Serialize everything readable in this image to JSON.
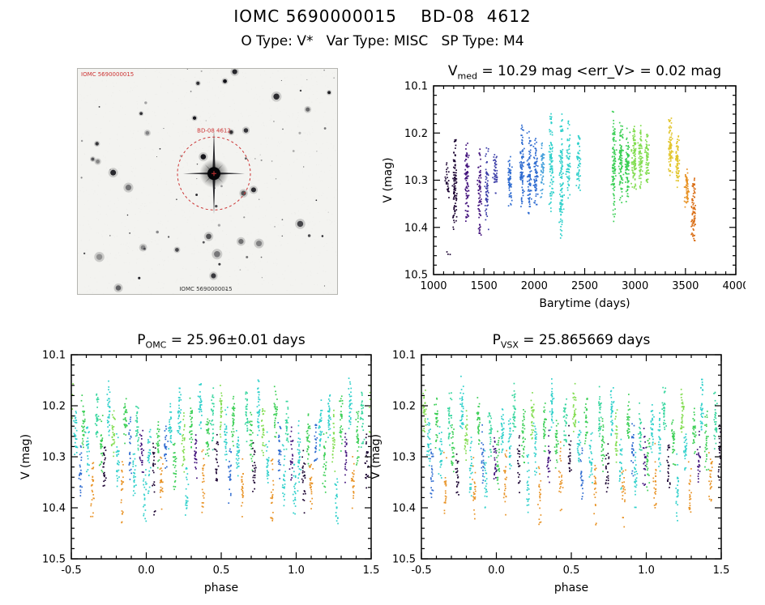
{
  "header": {
    "title": "IOMC 5690000015    BD-08  4612",
    "subtitle": "O Type: V*   Var Type: MISC   SP Type: M4"
  },
  "sky_image": {
    "top_left_label": "IOMC 5690000015",
    "circle_label": "BD-08 4612",
    "bottom_label": "IOMC 5690000015",
    "circle_color": "#cc3333"
  },
  "palette": [
    "#190030",
    "#42127c",
    "#3c3fa8",
    "#2e6bd0",
    "#4aa2dc",
    "#2fd0cb",
    "#36d69e",
    "#3bcf55",
    "#82dd50",
    "#c4de33",
    "#e2c52c",
    "#e89326",
    "#d96c12"
  ],
  "chart_data": [
    {
      "id": "lightcurve",
      "type": "scatter",
      "title_prefix": "V",
      "title_sub": "med",
      "title_rest": " = 10.29 mag <err_V> = 0.02 mag",
      "xlabel": "Barytime (days)",
      "ylabel": "V (mag)",
      "xlim": [
        1000,
        4000
      ],
      "ylim": [
        10.1,
        10.5
      ],
      "y_axis": "inverted (brighter magnitudes up)",
      "grid": false,
      "xticks": [
        1000,
        1500,
        2000,
        2500,
        3000,
        3500,
        4000
      ],
      "xtick_labels": [
        "1000",
        "1500",
        "2000",
        "2500",
        "3000",
        "3500",
        "4000"
      ],
      "yticks": [
        10.1,
        10.2,
        10.3,
        10.4,
        10.5
      ],
      "ytick_labels": [
        "10.1",
        "10.2",
        "10.3",
        "10.4",
        "10.5"
      ],
      "x_minor_step": 100,
      "y_minor_step": 0.02,
      "x_jitter": 30,
      "clusters": [
        [
          1135,
          10.25,
          10.34,
          0,
          25
        ],
        [
          1150,
          10.45,
          10.47,
          0,
          3
        ],
        [
          1210,
          10.19,
          10.42,
          0,
          90
        ],
        [
          1330,
          10.2,
          10.4,
          1,
          80
        ],
        [
          1460,
          10.22,
          10.43,
          1,
          70
        ],
        [
          1530,
          10.22,
          10.42,
          2,
          60
        ],
        [
          1615,
          10.24,
          10.34,
          2,
          45
        ],
        [
          1755,
          10.24,
          10.36,
          3,
          60
        ],
        [
          1880,
          10.17,
          10.38,
          3,
          90
        ],
        [
          1950,
          10.19,
          10.4,
          3,
          80
        ],
        [
          2015,
          10.2,
          10.38,
          3,
          70
        ],
        [
          2080,
          10.2,
          10.35,
          4,
          60
        ],
        [
          2170,
          10.14,
          10.38,
          5,
          90
        ],
        [
          2270,
          10.15,
          10.45,
          5,
          110
        ],
        [
          2340,
          10.17,
          10.35,
          5,
          60
        ],
        [
          2440,
          10.19,
          10.33,
          5,
          50
        ],
        [
          2790,
          10.14,
          10.4,
          7,
          110
        ],
        [
          2860,
          10.17,
          10.36,
          7,
          90
        ],
        [
          2925,
          10.18,
          10.35,
          7,
          80
        ],
        [
          2990,
          10.16,
          10.33,
          8,
          100
        ],
        [
          3055,
          10.18,
          10.33,
          8,
          80
        ],
        [
          3120,
          10.19,
          10.32,
          8,
          60
        ],
        [
          3350,
          10.16,
          10.3,
          10,
          80
        ],
        [
          3420,
          10.2,
          10.32,
          10,
          70
        ],
        [
          3515,
          10.27,
          10.36,
          11,
          60
        ],
        [
          3580,
          10.28,
          10.44,
          12,
          80
        ]
      ]
    },
    {
      "id": "phase_omc",
      "type": "scatter",
      "title_prefix": "P",
      "title_sub": "OMC",
      "title_rest": " = 25.96±0.01 days",
      "xlabel": "phase",
      "ylabel": "V (mag)",
      "xlim": [
        -0.5,
        1.5
      ],
      "ylim": [
        10.1,
        10.5
      ],
      "y_axis": "inverted (brighter magnitudes up)",
      "grid": false,
      "xticks": [
        -0.5,
        0.0,
        0.5,
        1.0,
        1.5
      ],
      "xtick_labels": [
        "-0.5",
        "0.0",
        "0.5",
        "1.0",
        "1.5"
      ],
      "yticks": [
        10.1,
        10.2,
        10.3,
        10.4,
        10.5
      ],
      "ytick_labels": [
        "10.1",
        "10.2",
        "10.3",
        "10.4",
        "10.5"
      ],
      "x_minor_step": 0.1,
      "y_minor_step": 0.02,
      "x_jitter": 0.016,
      "folded": true,
      "streaks": [
        [
          0.02,
          10.22,
          10.38,
          5,
          30
        ],
        [
          0.05,
          10.26,
          10.42,
          0,
          24
        ],
        [
          0.08,
          10.2,
          10.34,
          7,
          30
        ],
        [
          0.1,
          10.29,
          10.41,
          11,
          26
        ],
        [
          0.13,
          10.22,
          10.33,
          3,
          24
        ],
        [
          0.16,
          10.18,
          10.3,
          5,
          30
        ],
        [
          0.19,
          10.25,
          10.38,
          7,
          28
        ],
        [
          0.22,
          10.15,
          10.28,
          5,
          32
        ],
        [
          0.25,
          10.2,
          10.34,
          8,
          28
        ],
        [
          0.27,
          10.31,
          10.45,
          5,
          22
        ],
        [
          0.3,
          10.17,
          10.3,
          7,
          30
        ],
        [
          0.33,
          10.24,
          10.36,
          1,
          24
        ],
        [
          0.36,
          10.14,
          10.26,
          5,
          30
        ],
        [
          0.38,
          10.28,
          10.42,
          11,
          24
        ],
        [
          0.41,
          10.2,
          10.33,
          7,
          30
        ],
        [
          0.44,
          10.16,
          10.29,
          6,
          28
        ],
        [
          0.47,
          10.24,
          10.37,
          0,
          22
        ],
        [
          0.5,
          10.14,
          10.27,
          8,
          30
        ],
        [
          0.53,
          10.2,
          10.32,
          5,
          28
        ],
        [
          0.56,
          10.26,
          10.4,
          3,
          24
        ],
        [
          0.58,
          10.17,
          10.29,
          7,
          30
        ],
        [
          0.61,
          10.22,
          10.35,
          5,
          28
        ],
        [
          0.64,
          10.28,
          10.44,
          11,
          24
        ],
        [
          0.67,
          10.16,
          10.28,
          6,
          30
        ],
        [
          0.7,
          10.21,
          10.34,
          7,
          28
        ],
        [
          0.72,
          10.26,
          10.38,
          0,
          22
        ],
        [
          0.75,
          10.14,
          10.27,
          5,
          32
        ],
        [
          0.78,
          10.19,
          10.31,
          8,
          28
        ],
        [
          0.81,
          10.24,
          10.37,
          5,
          26
        ],
        [
          0.84,
          10.29,
          10.45,
          11,
          22
        ],
        [
          0.86,
          10.16,
          10.28,
          7,
          30
        ],
        [
          0.89,
          10.22,
          10.35,
          3,
          26
        ],
        [
          0.92,
          10.27,
          10.41,
          5,
          24
        ],
        [
          0.94,
          10.18,
          10.3,
          6,
          28
        ],
        [
          0.97,
          10.23,
          10.36,
          1,
          24
        ],
        [
          0.99,
          10.3,
          10.44,
          5,
          22
        ]
      ]
    },
    {
      "id": "phase_vsx",
      "type": "scatter",
      "title_prefix": "P",
      "title_sub": "VSX",
      "title_rest": " = 25.865669 days",
      "xlabel": "phase",
      "ylabel": "V (mag)",
      "xlim": [
        -0.5,
        1.5
      ],
      "ylim": [
        10.1,
        10.5
      ],
      "y_axis": "inverted (brighter magnitudes up)",
      "grid": false,
      "xticks": [
        -0.5,
        0.0,
        0.5,
        1.0,
        1.5
      ],
      "xtick_labels": [
        "-0.5",
        "0.0",
        "0.5",
        "1.0",
        "1.5"
      ],
      "yticks": [
        10.1,
        10.2,
        10.3,
        10.4,
        10.5
      ],
      "ytick_labels": [
        "10.1",
        "10.2",
        "10.3",
        "10.4",
        "10.5"
      ],
      "x_minor_step": 0.1,
      "y_minor_step": 0.02,
      "x_jitter": 0.016,
      "folded": true,
      "streaks": [
        [
          0.01,
          10.24,
          10.37,
          7,
          28
        ],
        [
          0.04,
          10.18,
          10.3,
          5,
          30
        ],
        [
          0.06,
          10.27,
          10.42,
          11,
          24
        ],
        [
          0.09,
          10.21,
          10.34,
          5,
          28
        ],
        [
          0.12,
          10.15,
          10.27,
          6,
          30
        ],
        [
          0.15,
          10.25,
          10.38,
          0,
          22
        ],
        [
          0.18,
          10.2,
          10.33,
          7,
          30
        ],
        [
          0.21,
          10.28,
          10.43,
          5,
          24
        ],
        [
          0.24,
          10.16,
          10.28,
          8,
          30
        ],
        [
          0.26,
          10.22,
          10.35,
          5,
          26
        ],
        [
          0.29,
          10.3,
          10.44,
          11,
          22
        ],
        [
          0.32,
          10.18,
          10.3,
          7,
          28
        ],
        [
          0.35,
          10.24,
          10.36,
          1,
          24
        ],
        [
          0.37,
          10.14,
          10.26,
          5,
          32
        ],
        [
          0.4,
          10.21,
          10.34,
          7,
          28
        ],
        [
          0.43,
          10.27,
          10.41,
          11,
          24
        ],
        [
          0.46,
          10.17,
          10.29,
          6,
          30
        ],
        [
          0.49,
          10.23,
          10.36,
          0,
          24
        ],
        [
          0.52,
          10.15,
          10.27,
          8,
          30
        ],
        [
          0.55,
          10.21,
          10.33,
          5,
          28
        ],
        [
          0.57,
          10.27,
          10.4,
          3,
          24
        ],
        [
          0.6,
          10.17,
          10.29,
          7,
          30
        ],
        [
          0.63,
          10.23,
          10.36,
          5,
          26
        ],
        [
          0.66,
          10.29,
          10.44,
          11,
          22
        ],
        [
          0.69,
          10.16,
          10.28,
          6,
          30
        ],
        [
          0.71,
          10.22,
          10.34,
          7,
          28
        ],
        [
          0.74,
          10.27,
          10.39,
          0,
          22
        ],
        [
          0.77,
          10.14,
          10.27,
          5,
          32
        ],
        [
          0.8,
          10.2,
          10.32,
          8,
          28
        ],
        [
          0.83,
          10.25,
          10.38,
          5,
          26
        ],
        [
          0.85,
          10.3,
          10.45,
          11,
          22
        ],
        [
          0.88,
          10.17,
          10.29,
          7,
          30
        ],
        [
          0.91,
          10.23,
          10.36,
          3,
          26
        ],
        [
          0.93,
          10.28,
          10.42,
          5,
          24
        ],
        [
          0.96,
          10.19,
          10.31,
          6,
          28
        ],
        [
          0.99,
          10.24,
          10.37,
          1,
          24
        ]
      ]
    }
  ]
}
